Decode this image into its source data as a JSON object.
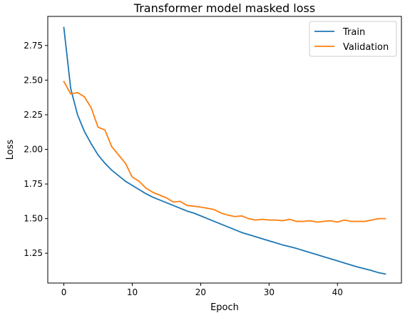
{
  "chart_data": {
    "type": "line",
    "title": "Transformer model masked loss",
    "xlabel": "Epoch",
    "ylabel": "Loss",
    "xlim": [
      -2.35,
      49.35
    ],
    "ylim": [
      1.035,
      2.96
    ],
    "xticks": [
      0,
      10,
      20,
      30,
      40
    ],
    "yticks": [
      1.25,
      1.5,
      1.75,
      2.0,
      2.25,
      2.5,
      2.75
    ],
    "grid": false,
    "legend": "top-right",
    "series": [
      {
        "name": "Train",
        "color": "#1f77b4",
        "x": [
          0,
          1,
          2,
          3,
          4,
          5,
          6,
          7,
          8,
          9,
          10,
          11,
          12,
          13,
          14,
          15,
          16,
          17,
          18,
          19,
          20,
          21,
          22,
          23,
          24,
          25,
          26,
          27,
          28,
          29,
          30,
          31,
          32,
          33,
          34,
          35,
          36,
          37,
          38,
          39,
          40,
          41,
          42,
          43,
          44,
          45,
          46,
          47
        ],
        "y": [
          2.88,
          2.44,
          2.25,
          2.13,
          2.04,
          1.96,
          1.9,
          1.85,
          1.81,
          1.77,
          1.74,
          1.71,
          1.68,
          1.655,
          1.635,
          1.615,
          1.595,
          1.575,
          1.555,
          1.54,
          1.52,
          1.5,
          1.48,
          1.46,
          1.44,
          1.42,
          1.4,
          1.385,
          1.37,
          1.355,
          1.34,
          1.325,
          1.31,
          1.298,
          1.285,
          1.27,
          1.255,
          1.24,
          1.225,
          1.21,
          1.195,
          1.18,
          1.165,
          1.15,
          1.138,
          1.125,
          1.11,
          1.1
        ]
      },
      {
        "name": "Validation",
        "color": "#ff7f0e",
        "x": [
          0,
          1,
          2,
          3,
          4,
          5,
          6,
          7,
          8,
          9,
          10,
          11,
          12,
          13,
          14,
          15,
          16,
          17,
          18,
          19,
          20,
          21,
          22,
          23,
          24,
          25,
          26,
          27,
          28,
          29,
          30,
          31,
          32,
          33,
          34,
          35,
          36,
          37,
          38,
          39,
          40,
          41,
          42,
          43,
          44,
          45,
          46,
          47
        ],
        "y": [
          2.49,
          2.4,
          2.41,
          2.38,
          2.3,
          2.16,
          2.14,
          2.02,
          1.96,
          1.9,
          1.8,
          1.77,
          1.72,
          1.69,
          1.67,
          1.65,
          1.62,
          1.625,
          1.595,
          1.59,
          1.583,
          1.575,
          1.565,
          1.54,
          1.525,
          1.515,
          1.52,
          1.5,
          1.49,
          1.495,
          1.49,
          1.49,
          1.485,
          1.495,
          1.48,
          1.48,
          1.485,
          1.475,
          1.48,
          1.485,
          1.475,
          1.49,
          1.48,
          1.48,
          1.48,
          1.49,
          1.5,
          1.5
        ]
      }
    ]
  }
}
